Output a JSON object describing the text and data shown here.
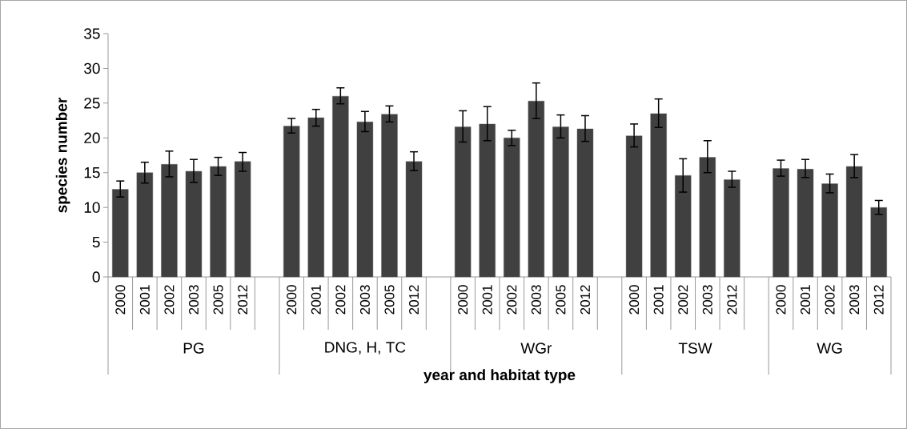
{
  "chart_data": {
    "type": "bar",
    "xlabel": "year and habitat type",
    "ylabel": "species number",
    "color": "#404040",
    "categories": [
      "2000",
      "2001",
      "2002",
      "2003",
      "2005",
      "2012",
      null,
      "2000",
      "2001",
      "2002",
      "2003",
      "2005",
      "2012",
      null,
      "2000",
      "2001",
      "2002",
      "2003",
      "2005",
      "2012",
      null,
      "2000",
      "2001",
      "2002",
      "2003",
      "2012",
      null,
      "2000",
      "2001",
      "2002",
      "2003",
      "2012"
    ],
    "values": [
      12.6,
      15.0,
      16.2,
      15.2,
      15.9,
      16.6,
      null,
      21.7,
      22.9,
      26.0,
      22.3,
      23.4,
      16.6,
      null,
      21.6,
      22.0,
      20.0,
      25.3,
      21.6,
      21.3,
      null,
      20.3,
      23.5,
      14.6,
      17.2,
      14.0,
      null,
      15.6,
      15.5,
      13.4,
      15.9,
      10.0
    ],
    "errors": [
      [
        11.5,
        13.8
      ],
      [
        13.5,
        16.5
      ],
      [
        14.4,
        18.1
      ],
      [
        13.6,
        16.9
      ],
      [
        14.6,
        17.2
      ],
      [
        15.2,
        17.9
      ],
      null,
      [
        20.7,
        22.8
      ],
      [
        21.7,
        24.1
      ],
      [
        24.9,
        27.2
      ],
      [
        20.9,
        23.8
      ],
      [
        22.3,
        24.6
      ],
      [
        15.3,
        18.0
      ],
      null,
      [
        19.4,
        23.9
      ],
      [
        19.6,
        24.5
      ],
      [
        18.9,
        21.1
      ],
      [
        22.8,
        27.9
      ],
      [
        20.0,
        23.3
      ],
      [
        19.5,
        23.2
      ],
      null,
      [
        18.7,
        22.0
      ],
      [
        21.5,
        25.6
      ],
      [
        12.2,
        17.0
      ],
      [
        15.0,
        19.6
      ],
      [
        12.9,
        15.2
      ],
      null,
      [
        14.5,
        16.8
      ],
      [
        14.3,
        16.9
      ],
      [
        12.1,
        14.8
      ],
      [
        14.3,
        17.6
      ],
      [
        9.0,
        11.0
      ]
    ],
    "annotations": [
      "PG",
      "DNG, H, TC",
      "WGr",
      "TSW",
      "WG"
    ],
    "ylim": [
      0,
      35
    ],
    "yticks": [
      0,
      5,
      10,
      15,
      20,
      25,
      30,
      35
    ],
    "grid": false
  }
}
